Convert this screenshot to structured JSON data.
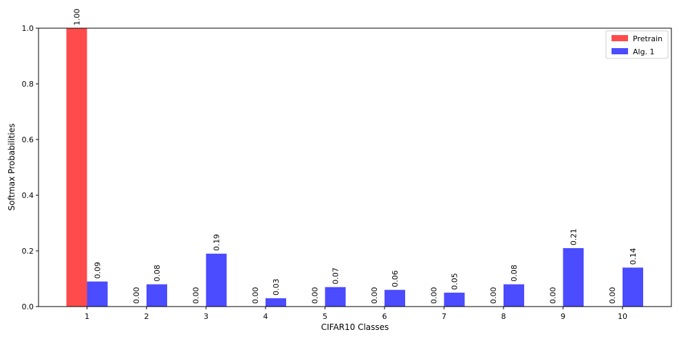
{
  "chart_data": {
    "type": "bar",
    "categories": [
      "1",
      "2",
      "3",
      "4",
      "5",
      "6",
      "7",
      "8",
      "9",
      "10"
    ],
    "series": [
      {
        "name": "Pretrain",
        "color": "#ff4b4b",
        "values": [
          1.0,
          0.0,
          0.0,
          0.0,
          0.0,
          0.0,
          0.0,
          0.0,
          0.0,
          0.0
        ],
        "labels": [
          "1.00",
          "0.00",
          "0.00",
          "0.00",
          "0.00",
          "0.00",
          "0.00",
          "0.00",
          "0.00",
          "0.00"
        ]
      },
      {
        "name": "Alg. 1",
        "color": "#4b4bff",
        "values": [
          0.09,
          0.08,
          0.19,
          0.03,
          0.07,
          0.06,
          0.05,
          0.08,
          0.21,
          0.14
        ],
        "labels": [
          "0.09",
          "0.08",
          "0.19",
          "0.03",
          "0.07",
          "0.06",
          "0.05",
          "0.08",
          "0.21",
          "0.14"
        ]
      }
    ],
    "xlabel": "CIFAR10 Classes",
    "ylabel": "Softmax Probabilities",
    "ylim": [
      0,
      1.0
    ],
    "yticks": [
      "0.0",
      "0.2",
      "0.4",
      "0.6",
      "0.8",
      "1.0"
    ],
    "legend_position": "top-right",
    "grid": false
  }
}
